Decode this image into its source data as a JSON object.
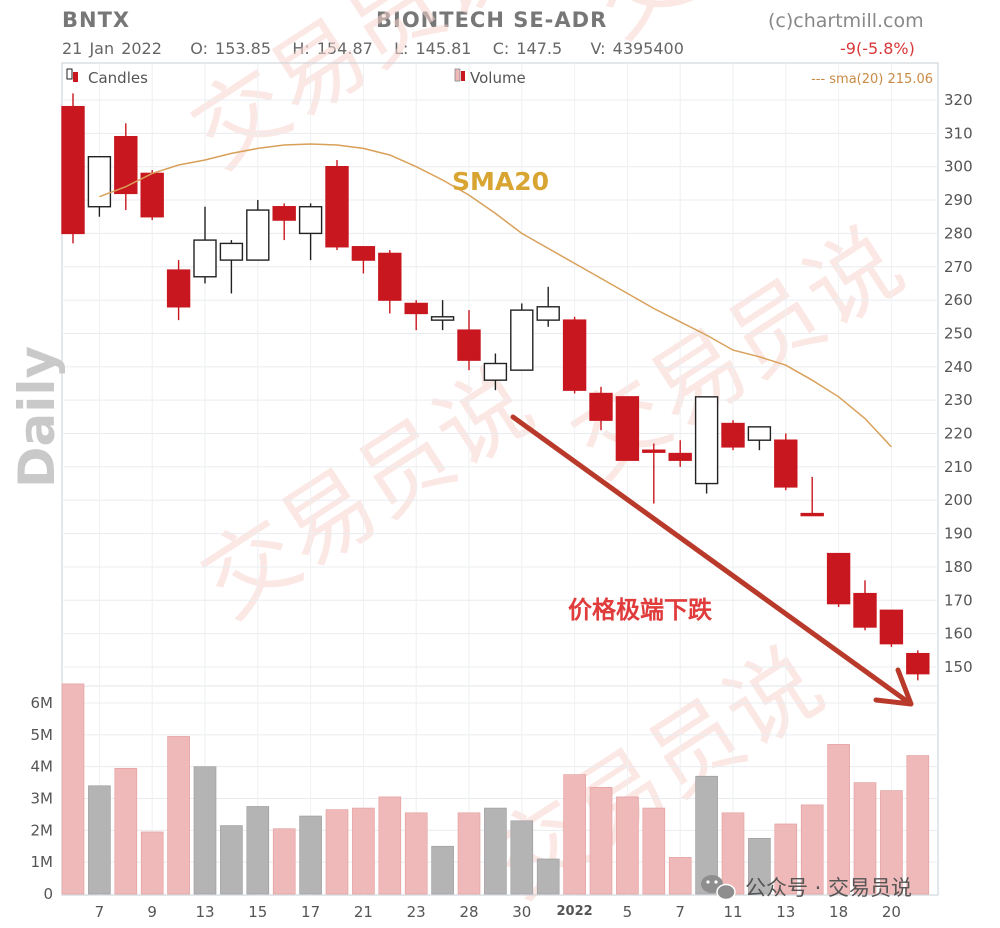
{
  "header": {
    "ticker": "BNTX",
    "company": "BIONTECH SE-ADR",
    "credit": "(c)chartmill.com",
    "date": "21 Jan 2022",
    "open": "O: 153.85",
    "high": "H: 154.87",
    "low": "L: 145.81",
    "close": "C: 147.5",
    "volume": "V: 4395400",
    "change": "-9(-5.8%)"
  },
  "legend": {
    "candles": "Candles",
    "volume": "Volume",
    "sma": "--- sma(20) 215.06"
  },
  "annotations": {
    "sma_label": "SMA20",
    "drop_label": "价格极端下跌",
    "period_label": "Daily",
    "watermark": "交易员说",
    "footer": "公众号 · 交易员说"
  },
  "colors": {
    "down": "#c8171e",
    "up_fill": "#ffffff",
    "up_stroke": "#222222",
    "vol_down": "#efb9b9",
    "vol_up": "#b4b4b4",
    "sma": "#d9a05a",
    "sma_label": "#d9a532",
    "arrow": "#b93a2a",
    "drop_text": "#e03c3c",
    "watermark": "#f7d6d0"
  },
  "chart_data": {
    "type": "candlestick",
    "period": "Daily",
    "y_ticks": [
      150,
      160,
      170,
      180,
      190,
      200,
      210,
      220,
      230,
      240,
      250,
      260,
      270,
      280,
      290,
      300,
      310,
      320
    ],
    "volume_ticks": [
      "0",
      "1M",
      "2M",
      "3M",
      "4M",
      "5M",
      "6M"
    ],
    "x_tick_labels": [
      "7",
      "9",
      "13",
      "15",
      "17",
      "21",
      "23",
      "28",
      "30",
      "2022",
      "5",
      "7",
      "11",
      "13",
      "18",
      "20"
    ],
    "ohlc": [
      {
        "o": 318,
        "h": 322,
        "l": 277,
        "c": 280
      },
      {
        "o": 288,
        "h": 303,
        "l": 285,
        "c": 303
      },
      {
        "o": 309,
        "h": 313,
        "l": 287,
        "c": 292
      },
      {
        "o": 298,
        "h": 299,
        "l": 284,
        "c": 285
      },
      {
        "o": 269,
        "h": 272,
        "l": 254,
        "c": 258
      },
      {
        "o": 267,
        "h": 288,
        "l": 265,
        "c": 278
      },
      {
        "o": 272,
        "h": 278,
        "l": 262,
        "c": 277
      },
      {
        "o": 272,
        "h": 290,
        "l": 272,
        "c": 287
      },
      {
        "o": 288,
        "h": 289,
        "l": 278,
        "c": 284
      },
      {
        "o": 280,
        "h": 289,
        "l": 272,
        "c": 288
      },
      {
        "o": 300,
        "h": 302,
        "l": 275,
        "c": 276
      },
      {
        "o": 276,
        "h": 276,
        "l": 268,
        "c": 272
      },
      {
        "o": 274,
        "h": 275,
        "l": 256,
        "c": 260
      },
      {
        "o": 259,
        "h": 260,
        "l": 251,
        "c": 256
      },
      {
        "o": 254,
        "h": 260,
        "l": 251,
        "c": 255
      },
      {
        "o": 251,
        "h": 257,
        "l": 239,
        "c": 242
      },
      {
        "o": 236,
        "h": 244,
        "l": 233,
        "c": 241
      },
      {
        "o": 239,
        "h": 259,
        "l": 239,
        "c": 257
      },
      {
        "o": 254,
        "h": 264,
        "l": 252,
        "c": 258
      },
      {
        "o": 254,
        "h": 255,
        "l": 232,
        "c": 233
      },
      {
        "o": 232,
        "h": 234,
        "l": 221,
        "c": 224
      },
      {
        "o": 231,
        "h": 231,
        "l": 212,
        "c": 212
      },
      {
        "o": 215,
        "h": 217,
        "l": 199,
        "c": 215
      },
      {
        "o": 214,
        "h": 218,
        "l": 210,
        "c": 212
      },
      {
        "o": 205,
        "h": 231,
        "l": 202,
        "c": 231
      },
      {
        "o": 223,
        "h": 224,
        "l": 215,
        "c": 216
      },
      {
        "o": 218,
        "h": 222,
        "l": 215,
        "c": 222
      },
      {
        "o": 218,
        "h": 220,
        "l": 203,
        "c": 204
      },
      {
        "o": 196,
        "h": 207,
        "l": 196,
        "c": 196
      },
      {
        "o": 184,
        "h": 184,
        "l": 168,
        "c": 169
      },
      {
        "o": 172,
        "h": 176,
        "l": 161,
        "c": 162
      },
      {
        "o": 167,
        "h": 167,
        "l": 156,
        "c": 157
      },
      {
        "o": 154,
        "h": 155,
        "l": 146,
        "c": 148
      }
    ],
    "volume_millions": [
      6.6,
      3.4,
      3.95,
      1.95,
      4.95,
      4.0,
      2.15,
      2.75,
      2.05,
      2.45,
      2.65,
      2.7,
      3.05,
      2.55,
      1.5,
      2.55,
      2.7,
      2.3,
      1.1,
      3.75,
      3.35,
      3.05,
      2.7,
      1.15,
      3.7,
      2.55,
      1.75,
      2.2,
      2.8,
      4.7,
      3.5,
      3.25,
      4.35
    ],
    "sma20": [
      291,
      294,
      298,
      300.5,
      302,
      304,
      305.5,
      306.5,
      306.8,
      306.5,
      305.5,
      303.5,
      300,
      296,
      291.5,
      286,
      280,
      275.5,
      271,
      266.5,
      262,
      257.5,
      253.5,
      249.5,
      245,
      243,
      240.5,
      236,
      231,
      224.5,
      216
    ]
  }
}
